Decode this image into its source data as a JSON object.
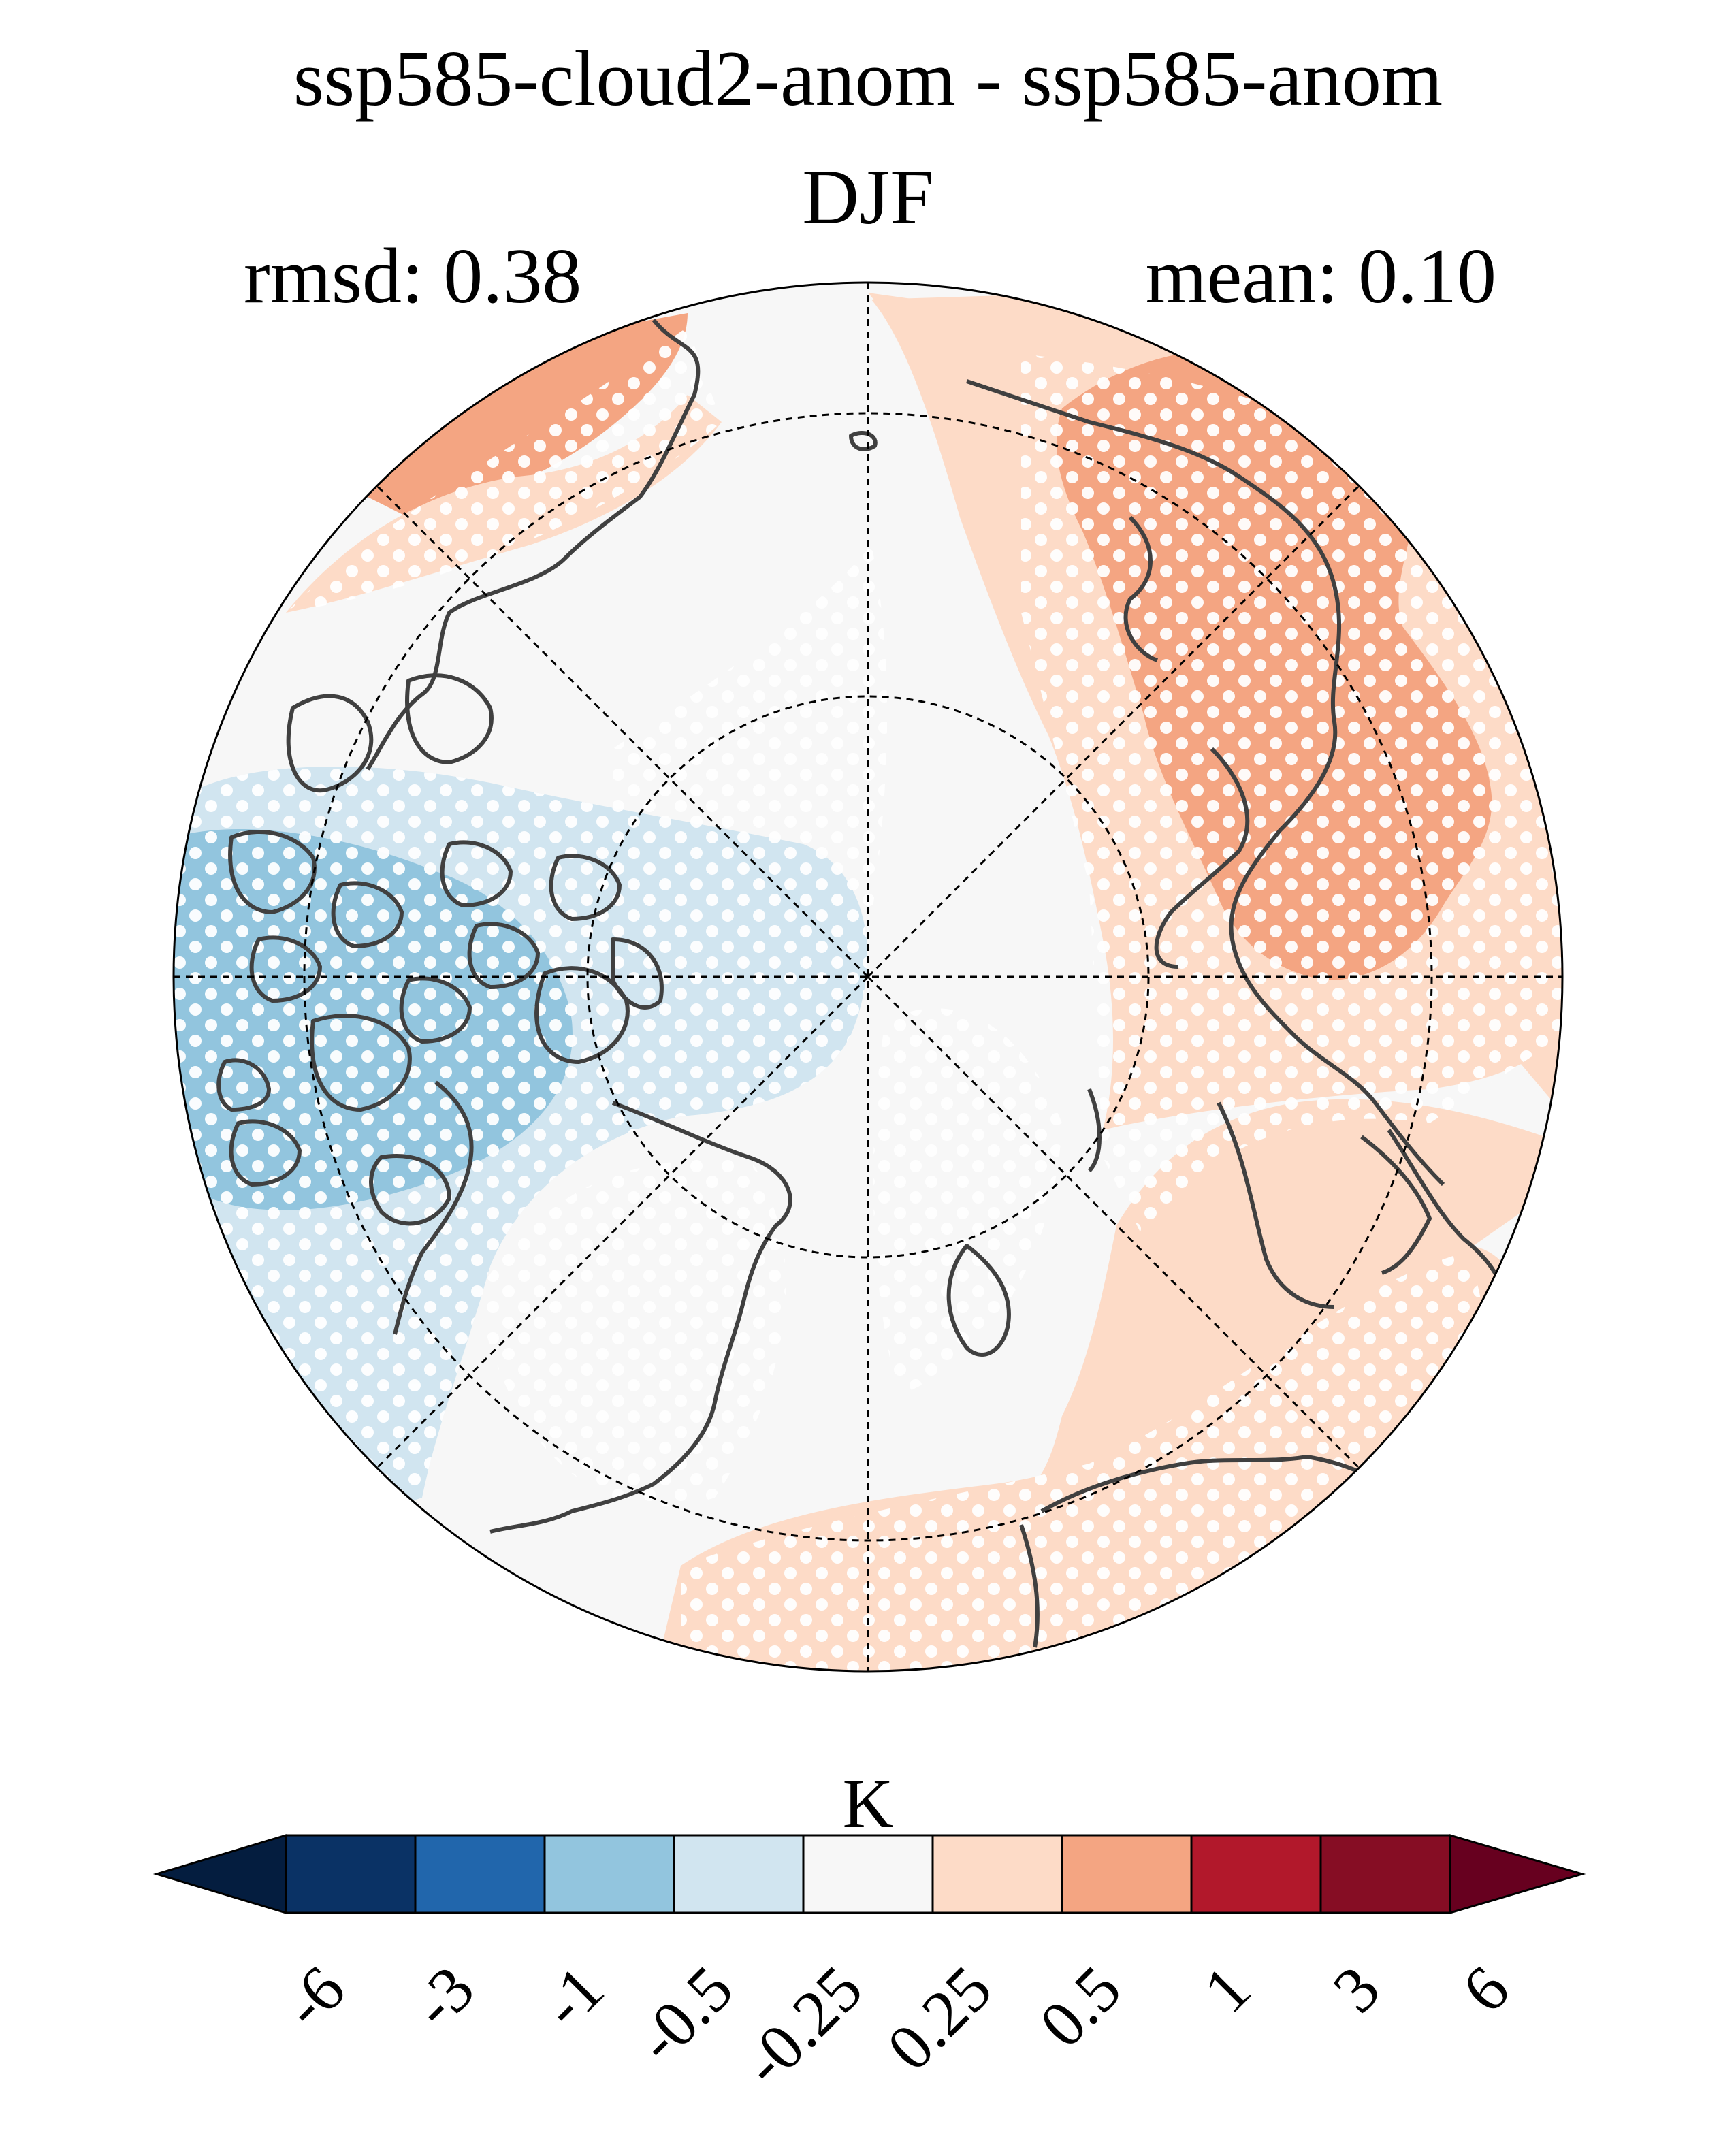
{
  "title": "ssp585-cloud2-anom - ssp585-anom",
  "season": "DJF",
  "rmsd_label": "rmsd: 0.38",
  "mean_label": "mean: 0.10",
  "colorbar": {
    "units": "K",
    "ticks": [
      "-6",
      "-3",
      "-1",
      "-0.5",
      "-0.25",
      "0.25",
      "0.5",
      "1",
      "3",
      "6"
    ],
    "colors": [
      "#041d3f",
      "#0a3265",
      "#2166ac",
      "#92c5de",
      "#d1e5f0",
      "#f7f7f7",
      "#fddbc7",
      "#f4a582",
      "#b2182b",
      "#860d24",
      "#67001f"
    ]
  },
  "map": {
    "projection": "north-polar-stereographic",
    "field": "surface temperature anomaly difference",
    "stippling": "white dots mark significant regions",
    "regions": [
      {
        "name": "northern-canada-greenland",
        "value_class": "-1 to -0.5",
        "color": "#92c5de"
      },
      {
        "name": "arctic-ocean-north-america-sector",
        "value_class": "-0.5 to -0.25",
        "color": "#d1e5f0"
      },
      {
        "name": "central-arctic",
        "value_class": "-0.25 to 0.25",
        "color": "#f7f7f7"
      },
      {
        "name": "siberia",
        "value_class": "0.25 to 0.5",
        "color": "#fddbc7"
      },
      {
        "name": "central-siberia-core",
        "value_class": "0.5 to 1",
        "color": "#f4a582"
      },
      {
        "name": "northern-europe",
        "value_class": "0.25 to 0.5",
        "color": "#fddbc7"
      },
      {
        "name": "alaska-bering",
        "value_class": "0.5 to 1",
        "color": "#f4a582"
      }
    ]
  }
}
